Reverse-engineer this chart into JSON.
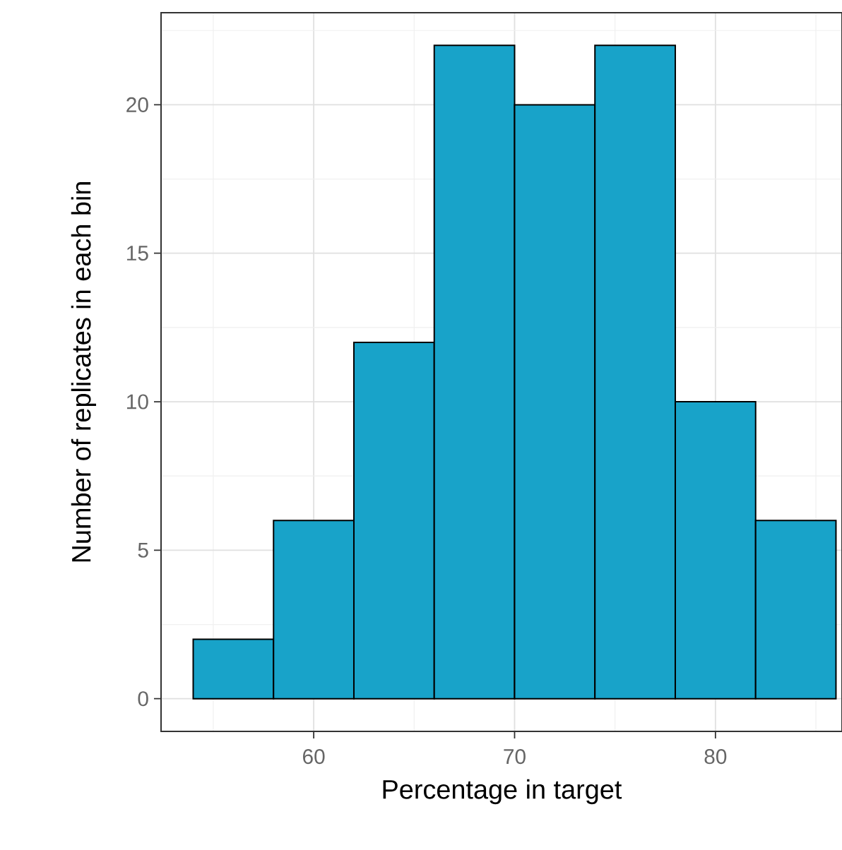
{
  "chart_data": {
    "type": "histogram",
    "xlabel": "Percentage in target",
    "ylabel": "Number of replicates in each bin",
    "bins": [
      54,
      58,
      62,
      66,
      70,
      74,
      78,
      82,
      86
    ],
    "values": [
      2,
      6,
      12,
      22,
      20,
      22,
      10,
      6
    ],
    "color": "#18a3c9",
    "xlim": [
      52.4,
      86.3
    ],
    "ylim": [
      -1.1,
      23.1
    ],
    "xticks": [
      60,
      70,
      80
    ],
    "yticks": [
      0,
      5,
      10,
      15,
      20
    ],
    "grid": true
  }
}
